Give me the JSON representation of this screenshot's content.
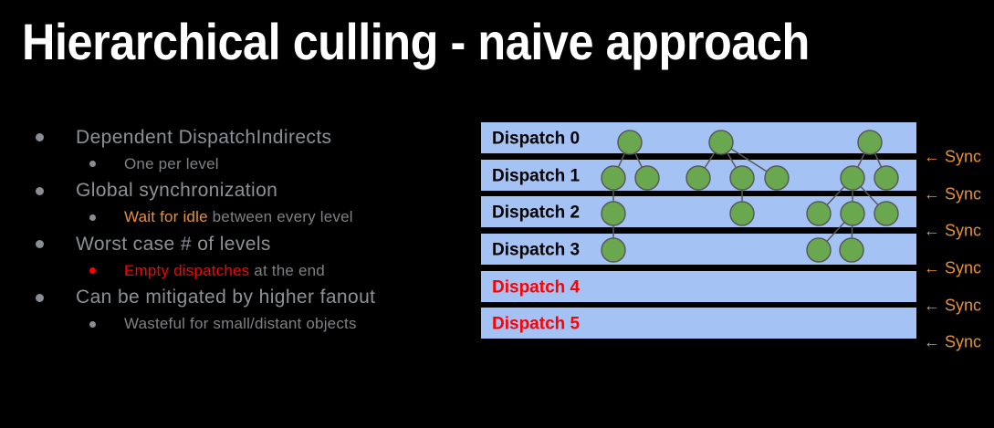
{
  "slide": {
    "title": "Hierarchical culling - naive approach",
    "background": "#000000",
    "title_color": "#ffffff"
  },
  "bullets": {
    "default_bullet_color": "#8a8d91",
    "level1_text_color": "#8d9095",
    "level2_text_color": "#7e8083",
    "items": [
      {
        "level": 1,
        "segments": [
          {
            "text": "Dependent DispatchIndirects"
          }
        ]
      },
      {
        "level": 2,
        "segments": [
          {
            "text": "One per level"
          }
        ]
      },
      {
        "level": 1,
        "segments": [
          {
            "text": "Global synchronization"
          }
        ]
      },
      {
        "level": 2,
        "segments": [
          {
            "text": "Wait for idle",
            "color": "#e69138"
          },
          {
            "text": " between every level"
          }
        ]
      },
      {
        "level": 1,
        "segments": [
          {
            "text": "Worst case # of levels"
          }
        ]
      },
      {
        "level": 2,
        "bullet_color": "#ff0000",
        "segments": [
          {
            "text": "Empty dispatches",
            "color": "#ff0000"
          },
          {
            "text": " at the end"
          }
        ]
      },
      {
        "level": 1,
        "segments": [
          {
            "text": "Can be mitigated by higher fanout"
          }
        ]
      },
      {
        "level": 2,
        "segments": [
          {
            "text": "Wasteful for small/distant objects"
          }
        ]
      }
    ]
  },
  "diagram": {
    "bar_color": "#a4c2f4",
    "node_fill": "#6aa84f",
    "node_stroke": "#595959",
    "edge_color": "#595959",
    "sync_color": "#e69138",
    "sync_label": "← Sync",
    "rows": [
      {
        "label": "Dispatch 0",
        "label_color": "#000000",
        "nodes": [
          690,
          790,
          953
        ]
      },
      {
        "label": "Dispatch 1",
        "label_color": "#000000",
        "nodes": [
          672,
          709,
          765,
          813,
          851,
          934,
          971
        ]
      },
      {
        "label": "Dispatch 2",
        "label_color": "#000000",
        "nodes": [
          672,
          813,
          897,
          934,
          971
        ]
      },
      {
        "label": "Dispatch 3",
        "label_color": "#000000",
        "nodes": [
          672,
          897,
          933
        ]
      },
      {
        "label": "Dispatch 4",
        "label_color": "#ff0000",
        "nodes": []
      },
      {
        "label": "Dispatch 5",
        "label_color": "#ff0000",
        "nodes": []
      }
    ],
    "edges": [
      {
        "row": 0,
        "from": 690,
        "to": 672
      },
      {
        "row": 0,
        "from": 690,
        "to": 709
      },
      {
        "row": 0,
        "from": 790,
        "to": 765
      },
      {
        "row": 0,
        "from": 790,
        "to": 813
      },
      {
        "row": 0,
        "from": 790,
        "to": 851
      },
      {
        "row": 0,
        "from": 953,
        "to": 934
      },
      {
        "row": 0,
        "from": 953,
        "to": 971
      },
      {
        "row": 1,
        "from": 672,
        "to": 672
      },
      {
        "row": 1,
        "from": 813,
        "to": 813
      },
      {
        "row": 1,
        "from": 934,
        "to": 897
      },
      {
        "row": 1,
        "from": 934,
        "to": 934
      },
      {
        "row": 1,
        "from": 934,
        "to": 971
      },
      {
        "row": 2,
        "from": 672,
        "to": 672
      },
      {
        "row": 2,
        "from": 934,
        "to": 897
      },
      {
        "row": 2,
        "from": 934,
        "to": 933
      }
    ]
  }
}
